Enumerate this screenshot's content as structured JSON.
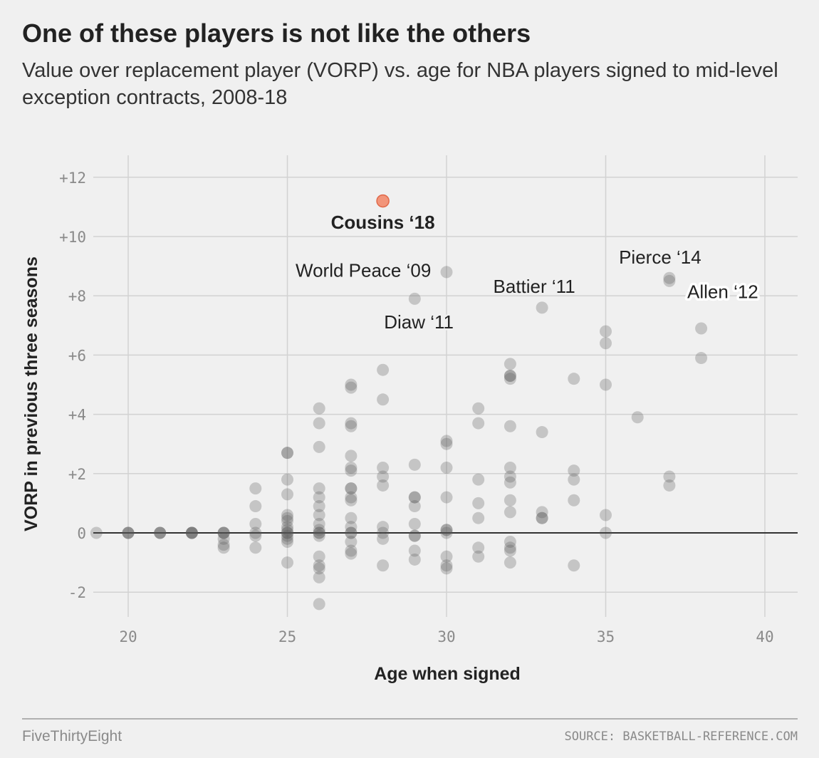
{
  "header": {
    "title": "One of these players is not like the others",
    "subtitle": "Value over replacement player (VORP) vs. age for NBA players signed to mid-level exception contracts, 2008-18"
  },
  "footer": {
    "brand": "FiveThirtyEight",
    "source": "SOURCE: BASKETBALL-REFERENCE.COM"
  },
  "colors": {
    "background": "#f0f0f0",
    "point": "#555555",
    "highlight": "#f2957a",
    "highlight_stroke": "#e0694a",
    "grid": "#d2d2d2",
    "baseline": "#333333"
  },
  "chart_data": {
    "type": "scatter",
    "xlabel": "Age when signed",
    "ylabel": "VORP in previous three seasons",
    "xlim": [
      19,
      41
    ],
    "ylim": [
      -2.7,
      12.7
    ],
    "xticks": [
      20,
      25,
      30,
      35,
      40
    ],
    "yticks": [
      -2,
      0,
      2,
      4,
      6,
      8,
      10,
      12
    ],
    "ytick_labels": [
      "-2",
      "0",
      "+2",
      "+4",
      "+6",
      "+8",
      "+10",
      "+12"
    ],
    "grid": true,
    "highlight": {
      "label": "Cousins ‘18",
      "x": 28,
      "y": 11.2
    },
    "annotations": [
      {
        "text": "World Peace ‘09",
        "x": 29,
        "y": 7.9
      },
      {
        "text": "Diaw ‘11",
        "x": 30,
        "y": 8.8
      },
      {
        "text": "Battier ‘11",
        "x": 33,
        "y": 7.6
      },
      {
        "text": "Pierce ‘14",
        "x": 37,
        "y": 8.6
      },
      {
        "text": "Allen ‘12",
        "x": 37,
        "y": 8.5
      }
    ],
    "points": [
      [
        19,
        0
      ],
      [
        20,
        0
      ],
      [
        20,
        0
      ],
      [
        20,
        0
      ],
      [
        21,
        0
      ],
      [
        21,
        0
      ],
      [
        21,
        0
      ],
      [
        22,
        0
      ],
      [
        22,
        0
      ],
      [
        22,
        0
      ],
      [
        22,
        0
      ],
      [
        23,
        0
      ],
      [
        23,
        0
      ],
      [
        23,
        -0.2
      ],
      [
        23,
        -0.4
      ],
      [
        23,
        -0.5
      ],
      [
        23,
        0
      ],
      [
        24,
        1.5
      ],
      [
        24,
        0.9
      ],
      [
        24,
        0.3
      ],
      [
        24,
        0
      ],
      [
        24,
        -0.1
      ],
      [
        24,
        -0.5
      ],
      [
        25,
        2.7
      ],
      [
        25,
        2.7
      ],
      [
        25,
        1.8
      ],
      [
        25,
        1.3
      ],
      [
        25,
        0.6
      ],
      [
        25,
        0.5
      ],
      [
        25,
        0.4
      ],
      [
        25,
        0.2
      ],
      [
        25,
        0.1
      ],
      [
        25,
        0
      ],
      [
        25,
        0
      ],
      [
        25,
        -0.1
      ],
      [
        25,
        -0.2
      ],
      [
        25,
        -0.3
      ],
      [
        25,
        -1.0
      ],
      [
        26,
        4.2
      ],
      [
        26,
        3.7
      ],
      [
        26,
        2.9
      ],
      [
        26,
        1.5
      ],
      [
        26,
        1.2
      ],
      [
        26,
        0.9
      ],
      [
        26,
        0.6
      ],
      [
        26,
        0.3
      ],
      [
        26,
        0.1
      ],
      [
        26,
        0
      ],
      [
        26,
        0
      ],
      [
        26,
        -0.1
      ],
      [
        26,
        -0.8
      ],
      [
        26,
        -1.1
      ],
      [
        26,
        -1.2
      ],
      [
        26,
        -1.5
      ],
      [
        26,
        -2.4
      ],
      [
        27,
        5.0
      ],
      [
        27,
        4.9
      ],
      [
        27,
        3.7
      ],
      [
        27,
        3.6
      ],
      [
        27,
        2.6
      ],
      [
        27,
        2.2
      ],
      [
        27,
        2.1
      ],
      [
        27,
        1.5
      ],
      [
        27,
        1.5
      ],
      [
        27,
        1.2
      ],
      [
        27,
        1.1
      ],
      [
        27,
        0.5
      ],
      [
        27,
        0.2
      ],
      [
        27,
        0
      ],
      [
        27,
        0
      ],
      [
        27,
        -0.3
      ],
      [
        27,
        -0.6
      ],
      [
        27,
        -0.7
      ],
      [
        28,
        5.5
      ],
      [
        28,
        4.5
      ],
      [
        28,
        2.2
      ],
      [
        28,
        1.9
      ],
      [
        28,
        1.6
      ],
      [
        28,
        0.2
      ],
      [
        28,
        0
      ],
      [
        28,
        -0.2
      ],
      [
        28,
        -1.1
      ],
      [
        29,
        7.9
      ],
      [
        29,
        2.3
      ],
      [
        29,
        1.2
      ],
      [
        29,
        1.2
      ],
      [
        29,
        0.9
      ],
      [
        29,
        0.3
      ],
      [
        29,
        -0.1
      ],
      [
        29,
        -0.1
      ],
      [
        29,
        -0.6
      ],
      [
        29,
        -0.9
      ],
      [
        30,
        8.8
      ],
      [
        30,
        3.1
      ],
      [
        30,
        3.0
      ],
      [
        30,
        2.2
      ],
      [
        30,
        1.2
      ],
      [
        30,
        0.1
      ],
      [
        30,
        0.1
      ],
      [
        30,
        0
      ],
      [
        30,
        -0.8
      ],
      [
        30,
        -1.1
      ],
      [
        30,
        -1.2
      ],
      [
        31,
        4.2
      ],
      [
        31,
        3.7
      ],
      [
        31,
        1.8
      ],
      [
        31,
        1.0
      ],
      [
        31,
        0.5
      ],
      [
        31,
        -0.5
      ],
      [
        31,
        -0.8
      ],
      [
        32,
        5.7
      ],
      [
        32,
        5.3
      ],
      [
        32,
        5.3
      ],
      [
        32,
        5.2
      ],
      [
        32,
        3.6
      ],
      [
        32,
        2.2
      ],
      [
        32,
        1.9
      ],
      [
        32,
        1.7
      ],
      [
        32,
        1.1
      ],
      [
        32,
        0.7
      ],
      [
        32,
        -0.3
      ],
      [
        32,
        -0.5
      ],
      [
        32,
        -0.6
      ],
      [
        32,
        -1.0
      ],
      [
        33,
        7.6
      ],
      [
        33,
        3.4
      ],
      [
        33,
        0.7
      ],
      [
        33,
        0.5
      ],
      [
        33,
        0.5
      ],
      [
        34,
        5.2
      ],
      [
        34,
        2.1
      ],
      [
        34,
        1.8
      ],
      [
        34,
        1.1
      ],
      [
        34,
        -1.1
      ],
      [
        35,
        6.8
      ],
      [
        35,
        6.4
      ],
      [
        35,
        5.0
      ],
      [
        35,
        0.6
      ],
      [
        35,
        0
      ],
      [
        36,
        3.9
      ],
      [
        37,
        8.6
      ],
      [
        37,
        8.5
      ],
      [
        37,
        1.9
      ],
      [
        37,
        1.6
      ],
      [
        38,
        6.9
      ],
      [
        38,
        5.9
      ]
    ]
  }
}
